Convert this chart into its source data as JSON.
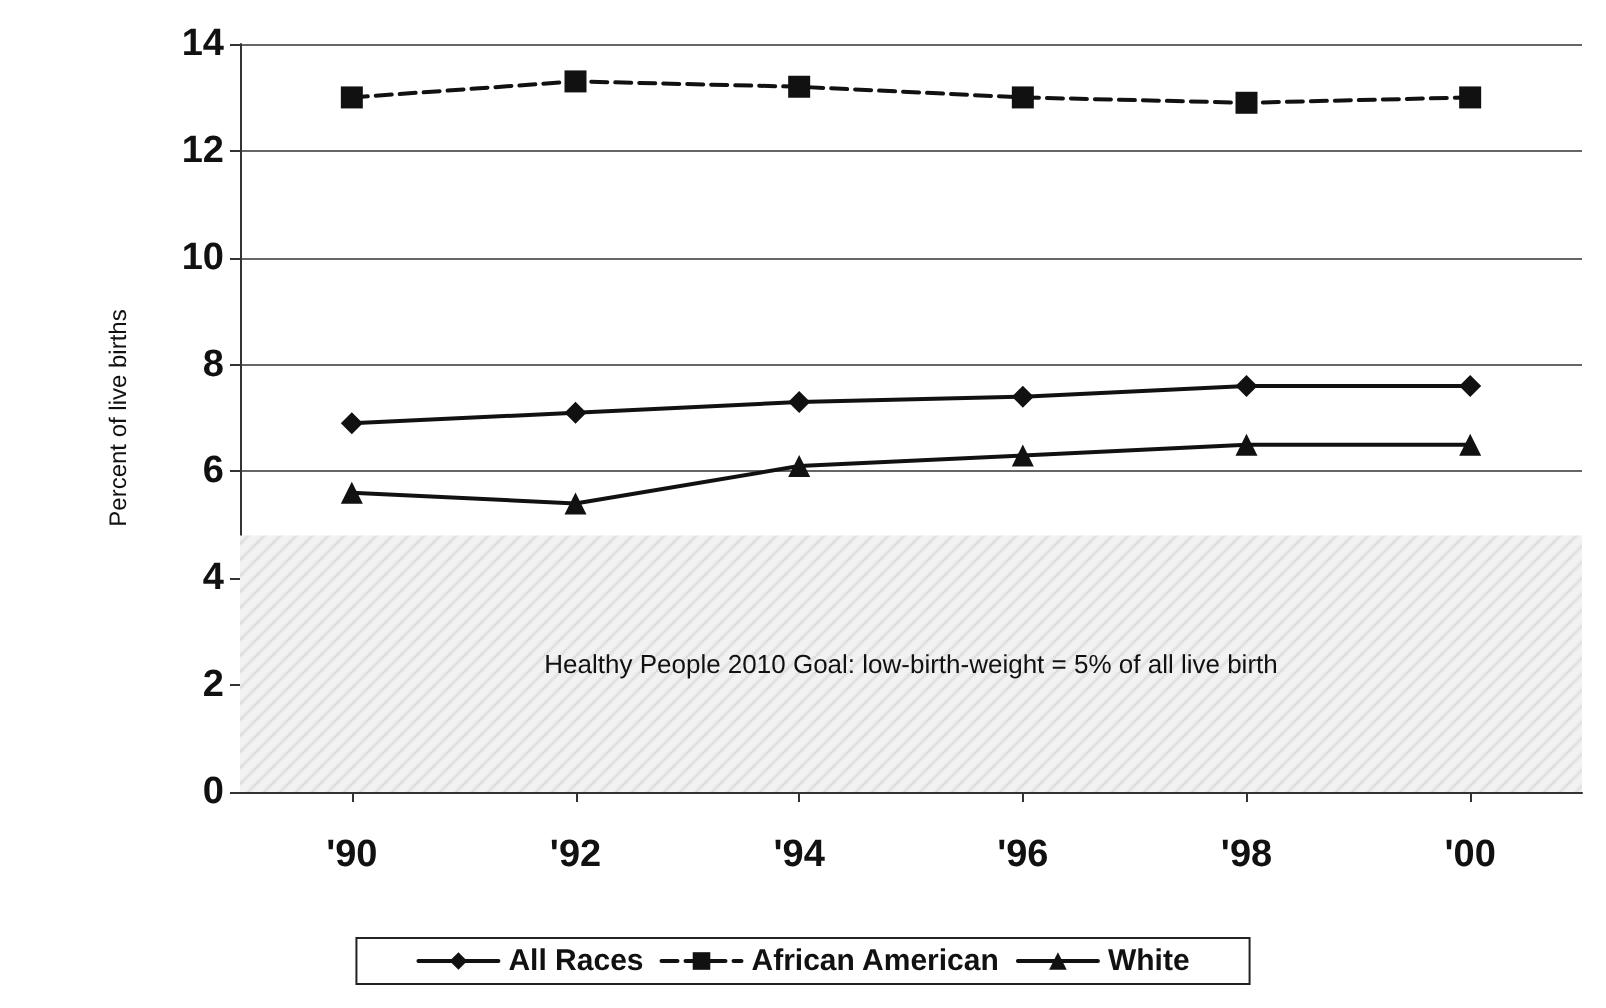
{
  "chart_data": {
    "type": "line",
    "ylabel": "Percent of live births",
    "categories": [
      "'90",
      "'92",
      "'94",
      "'96",
      "'98",
      "'00"
    ],
    "series": [
      {
        "name": "All Races",
        "color": "#111111",
        "marker": "diamond",
        "line_style": "solid",
        "values": [
          6.9,
          7.1,
          7.3,
          7.4,
          7.6,
          7.6
        ]
      },
      {
        "name": "African American",
        "color": "#111111",
        "marker": "square",
        "line_style": "dashed",
        "values": [
          13.0,
          13.3,
          13.2,
          13.0,
          12.9,
          13.0
        ]
      },
      {
        "name": "White",
        "color": "#111111",
        "marker": "triangle",
        "line_style": "solid",
        "values": [
          5.6,
          5.4,
          6.1,
          6.3,
          6.5,
          6.5
        ]
      }
    ],
    "ylim": [
      0,
      14
    ],
    "yticks": [
      0,
      2,
      4,
      6,
      8,
      10,
      12,
      14
    ],
    "grid": "y",
    "legend": "bottom",
    "bands": [
      {
        "axis": "y",
        "from": 0,
        "to": 4.8,
        "color": "#d9d9d9",
        "label": "Healthy People 2010 Goal: low-birth-weight = 5% of all live birth"
      }
    ]
  }
}
